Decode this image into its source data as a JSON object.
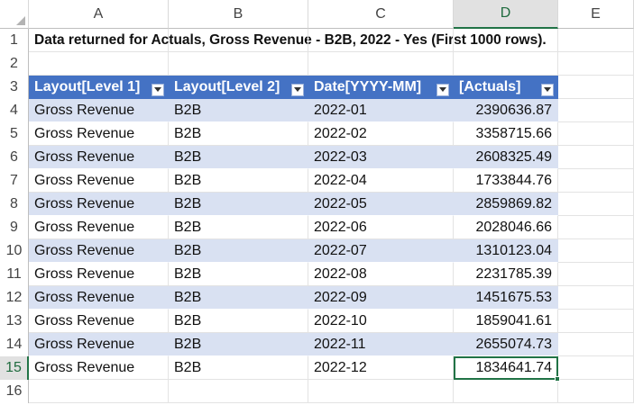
{
  "columns": [
    "A",
    "B",
    "C",
    "D",
    "E"
  ],
  "selected_column": "D",
  "rows": [
    "1",
    "2",
    "3",
    "4",
    "5",
    "6",
    "7",
    "8",
    "9",
    "10",
    "11",
    "12",
    "13",
    "14",
    "15",
    "16"
  ],
  "selected_row": "15",
  "title": "Data returned for Actuals, Gross Revenue - B2B, 2022 - Yes (First 1000 rows).",
  "table": {
    "headers": [
      "Layout[Level 1]",
      "Layout[Level 2]",
      "Date[YYYY-MM]",
      "[Actuals]"
    ],
    "rows": [
      [
        "Gross Revenue",
        "B2B",
        "2022-01",
        "2390636.87"
      ],
      [
        "Gross Revenue",
        "B2B",
        "2022-02",
        "3358715.66"
      ],
      [
        "Gross Revenue",
        "B2B",
        "2022-03",
        "2608325.49"
      ],
      [
        "Gross Revenue",
        "B2B",
        "2022-04",
        "1733844.76"
      ],
      [
        "Gross Revenue",
        "B2B",
        "2022-05",
        "2859869.82"
      ],
      [
        "Gross Revenue",
        "B2B",
        "2022-06",
        "2028046.66"
      ],
      [
        "Gross Revenue",
        "B2B",
        "2022-07",
        "1310123.04"
      ],
      [
        "Gross Revenue",
        "B2B",
        "2022-08",
        "2231785.39"
      ],
      [
        "Gross Revenue",
        "B2B",
        "2022-09",
        "1451675.53"
      ],
      [
        "Gross Revenue",
        "B2B",
        "2022-10",
        "1859041.61"
      ],
      [
        "Gross Revenue",
        "B2B",
        "2022-11",
        "2655074.73"
      ],
      [
        "Gross Revenue",
        "B2B",
        "2022-12",
        "1834641.74"
      ]
    ]
  },
  "colors": {
    "header_fill": "#4472c4",
    "band_fill": "#d9e1f2",
    "selection": "#217346"
  }
}
